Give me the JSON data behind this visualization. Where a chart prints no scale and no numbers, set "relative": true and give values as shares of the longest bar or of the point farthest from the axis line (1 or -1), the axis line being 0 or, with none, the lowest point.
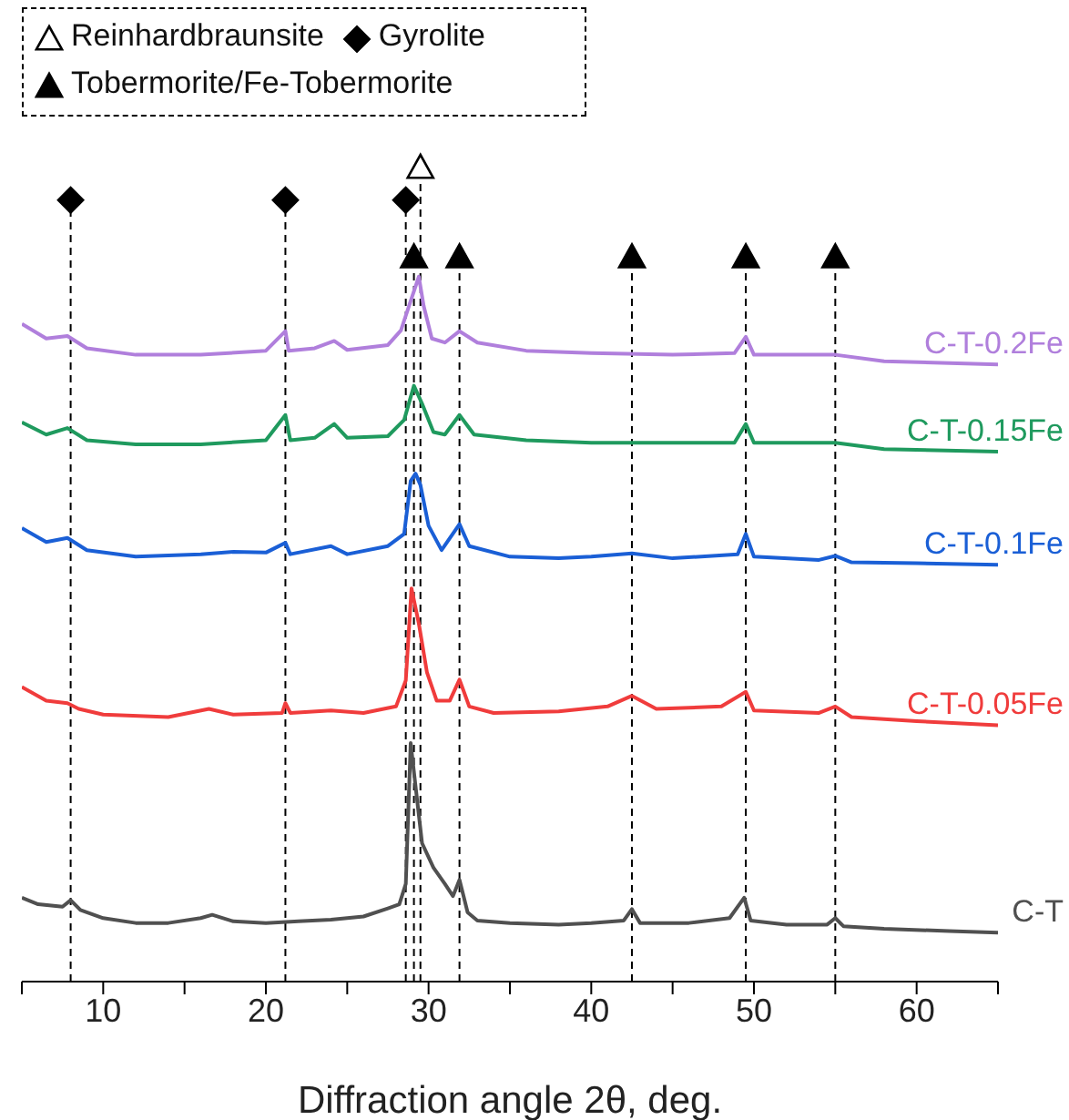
{
  "chart_data": {
    "type": "line",
    "relative": true,
    "xlabel": "Diffraction angle 2θ, deg.",
    "xlim": [
      5,
      65
    ],
    "xticks": [
      {
        "value": 5,
        "label": null
      },
      10,
      {
        "value": 15,
        "label": null
      },
      20,
      {
        "value": 25,
        "label": null
      },
      30,
      {
        "value": 35,
        "label": null
      },
      40,
      {
        "value": 45,
        "label": null
      },
      50,
      {
        "value": 55,
        "label": null
      },
      60,
      {
        "value": 65,
        "label": null
      }
    ],
    "grid": false,
    "legend": "top left",
    "marker": "none",
    "line_style": "solid",
    "series": [
      {
        "name": "C-T",
        "color": "#505050",
        "x": [
          5,
          6,
          7.5,
          8,
          8.6,
          10,
          12,
          14,
          16,
          16.7,
          18,
          20,
          22,
          24,
          26,
          27.5,
          28.2,
          28.6,
          28.9,
          29.2,
          29.6,
          30.3,
          31,
          31.5,
          31.9,
          32.4,
          33,
          35,
          38,
          40,
          42,
          42.5,
          43,
          46,
          48.5,
          49.4,
          49.8,
          52,
          54.5,
          55,
          55.5,
          58,
          62,
          65
        ],
        "values": [
          0.103,
          0.095,
          0.092,
          0.1,
          0.088,
          0.078,
          0.072,
          0.072,
          0.078,
          0.082,
          0.074,
          0.072,
          0.074,
          0.076,
          0.08,
          0.09,
          0.095,
          0.12,
          0.293,
          0.24,
          0.17,
          0.14,
          0.12,
          0.105,
          0.125,
          0.085,
          0.075,
          0.072,
          0.07,
          0.072,
          0.075,
          0.089,
          0.072,
          0.072,
          0.078,
          0.103,
          0.075,
          0.07,
          0.07,
          0.078,
          0.068,
          0.065,
          0.062,
          0.06
        ]
      },
      {
        "name": "C-T-0.05Fe",
        "color": "#f03c3c",
        "x": [
          5,
          6.5,
          7.8,
          8.5,
          10,
          14,
          16.5,
          18,
          21,
          21.2,
          21.5,
          24,
          26,
          28,
          28.6,
          28.95,
          29.4,
          29.9,
          30.5,
          31.3,
          31.9,
          32.5,
          34,
          38,
          41,
          42.5,
          44,
          48,
          49.5,
          50,
          54,
          55,
          56,
          60,
          65
        ],
        "values": [
          0.362,
          0.345,
          0.342,
          0.335,
          0.328,
          0.325,
          0.335,
          0.328,
          0.33,
          0.342,
          0.33,
          0.333,
          0.33,
          0.338,
          0.37,
          0.483,
          0.44,
          0.38,
          0.345,
          0.345,
          0.371,
          0.338,
          0.33,
          0.332,
          0.338,
          0.351,
          0.335,
          0.338,
          0.356,
          0.333,
          0.33,
          0.338,
          0.325,
          0.32,
          0.315
        ]
      },
      {
        "name": "C-T-0.1Fe",
        "color": "#1a5fd6",
        "x": [
          5,
          6.5,
          7.8,
          9,
          12,
          16,
          18,
          20,
          21.2,
          21.5,
          24,
          25,
          27.5,
          28.5,
          28.9,
          29.2,
          29.5,
          30,
          30.8,
          31.9,
          32.5,
          35,
          38,
          40,
          42.5,
          45,
          49,
          49.5,
          50,
          54,
          55,
          56,
          60,
          65
        ],
        "values": [
          0.557,
          0.54,
          0.545,
          0.53,
          0.522,
          0.525,
          0.528,
          0.527,
          0.539,
          0.525,
          0.535,
          0.525,
          0.535,
          0.55,
          0.615,
          0.624,
          0.61,
          0.56,
          0.53,
          0.562,
          0.535,
          0.522,
          0.52,
          0.522,
          0.526,
          0.52,
          0.525,
          0.55,
          0.522,
          0.518,
          0.523,
          0.515,
          0.514,
          0.512
        ]
      },
      {
        "name": "C-T-0.15Fe",
        "color": "#1f9a5e",
        "x": [
          5,
          6.5,
          7.8,
          9,
          12,
          16,
          20,
          21.2,
          21.5,
          23,
          24.2,
          25,
          27.5,
          28.5,
          29.1,
          29.6,
          30.3,
          31,
          31.9,
          32.8,
          36,
          40,
          45,
          48.8,
          49.5,
          50,
          55,
          58,
          65
        ],
        "values": [
          0.687,
          0.672,
          0.68,
          0.665,
          0.66,
          0.66,
          0.665,
          0.696,
          0.665,
          0.668,
          0.685,
          0.668,
          0.67,
          0.69,
          0.732,
          0.71,
          0.675,
          0.672,
          0.696,
          0.672,
          0.665,
          0.662,
          0.662,
          0.662,
          0.685,
          0.662,
          0.662,
          0.654,
          0.651
        ]
      },
      {
        "name": "C-T-0.2Fe",
        "color": "#b07fdc",
        "x": [
          5,
          6.5,
          7.8,
          9,
          12,
          16,
          20,
          21.2,
          21.4,
          23,
          24.2,
          25,
          27.5,
          28.3,
          28.8,
          29.4,
          29.7,
          30.2,
          31,
          31.9,
          33,
          36,
          40,
          45,
          48.8,
          49.5,
          50,
          55,
          58,
          65
        ],
        "values": [
          0.808,
          0.79,
          0.793,
          0.778,
          0.77,
          0.77,
          0.775,
          0.799,
          0.775,
          0.778,
          0.787,
          0.776,
          0.782,
          0.8,
          0.83,
          0.866,
          0.83,
          0.79,
          0.785,
          0.799,
          0.785,
          0.775,
          0.772,
          0.77,
          0.772,
          0.792,
          0.77,
          0.77,
          0.762,
          0.758
        ]
      },
      {
        "name": "Reinhardbraunsite",
        "type": "scatter",
        "marker": "triangle",
        "color": "#ffffff",
        "x": [
          29.5
        ],
        "values": [
          1
        ]
      },
      {
        "name": "Gyrolite",
        "type": "scatter",
        "marker": "diamond",
        "color": "#000000",
        "x": [
          8,
          21.2,
          28.6
        ],
        "values": [
          0.96,
          0.96,
          0.96
        ]
      },
      {
        "name": "Tobermorite/Fe-Tobermorite",
        "type": "scatter",
        "marker": "triangle",
        "color": "#000000",
        "x": [
          29.1,
          31.9,
          42.5,
          49.5,
          55
        ],
        "values": [
          0.89,
          0.89,
          0.89,
          0.89,
          0.89
        ]
      }
    ],
    "ref_lines": [
      {
        "axis": "x",
        "value": 8,
        "color": "#000000",
        "line_style": "dashed"
      },
      {
        "axis": "x",
        "value": 21.2,
        "color": "#000000",
        "line_style": "dashed"
      },
      {
        "axis": "x",
        "value": 28.6,
        "color": "#000000",
        "line_style": "dashed"
      },
      {
        "axis": "x",
        "value": 29.5,
        "color": "#000000",
        "line_style": "dashed"
      },
      {
        "axis": "x",
        "value": 29.1,
        "color": "#000000",
        "line_style": "dashed"
      },
      {
        "axis": "x",
        "value": 31.9,
        "color": "#000000",
        "line_style": "dashed"
      },
      {
        "axis": "x",
        "value": 42.5,
        "color": "#000000",
        "line_style": "dashed"
      },
      {
        "axis": "x",
        "value": 49.5,
        "color": "#000000",
        "line_style": "dashed"
      },
      {
        "axis": "x",
        "value": 55,
        "color": "#000000",
        "line_style": "dashed"
      }
    ]
  }
}
